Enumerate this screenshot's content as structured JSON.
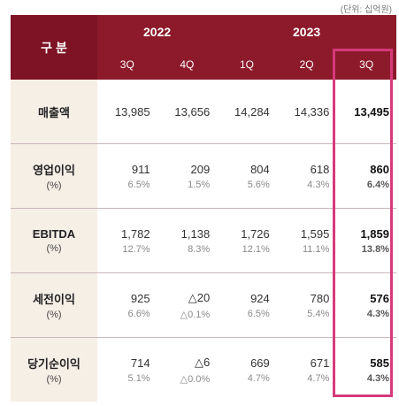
{
  "unit_note": "(단위: 십억원)",
  "header": {
    "gubun": "구 분",
    "years": [
      "2022",
      "2023"
    ],
    "quarters": [
      "3Q",
      "4Q",
      "1Q",
      "2Q",
      "3Q"
    ]
  },
  "rows": [
    {
      "label": "매출액",
      "sub": "",
      "values": [
        "13,985",
        "13,656",
        "14,284",
        "14,336",
        "13,495"
      ],
      "pct": [
        "",
        "",
        "",
        "",
        ""
      ]
    },
    {
      "label": "영업이익",
      "sub": "(%)",
      "values": [
        "911",
        "209",
        "804",
        "618",
        "860"
      ],
      "pct": [
        "6.5%",
        "1.5%",
        "5.6%",
        "4.3%",
        "6.4%"
      ]
    },
    {
      "label": "EBITDA",
      "sub": "(%)",
      "values": [
        "1,782",
        "1,138",
        "1,726",
        "1,595",
        "1,859"
      ],
      "pct": [
        "12.7%",
        "8.3%",
        "12.1%",
        "11.1%",
        "13.8%"
      ]
    },
    {
      "label": "세전이익",
      "sub": "(%)",
      "values": [
        "925",
        "△20",
        "924",
        "780",
        "576"
      ],
      "pct": [
        "6.6%",
        "△0.1%",
        "6.5%",
        "5.4%",
        "4.3%"
      ]
    },
    {
      "label": "당기순이익",
      "sub": "(%)",
      "values": [
        "714",
        "△6",
        "669",
        "671",
        "585"
      ],
      "pct": [
        "5.1%",
        "△0.0%",
        "4.7%",
        "4.7%",
        "4.3%"
      ]
    }
  ],
  "colors": {
    "header_bg": "#8c1a2b",
    "label_bg": "#f6efe6",
    "highlight_border": "#d63a7a"
  }
}
